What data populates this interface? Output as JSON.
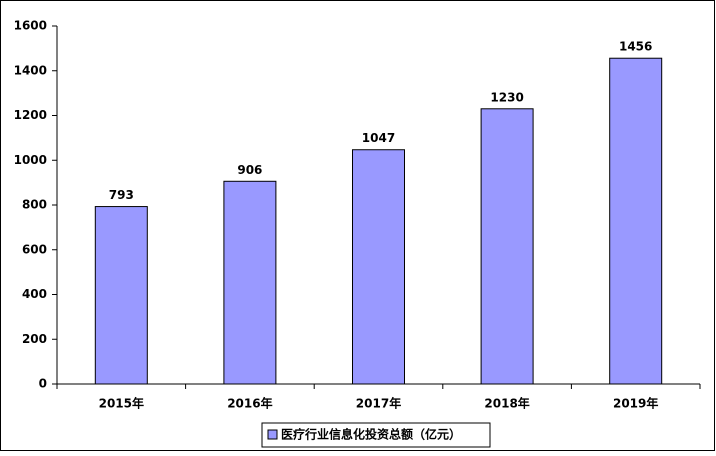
{
  "chart_data": {
    "type": "bar",
    "categories": [
      "2015年",
      "2016年",
      "2017年",
      "2018年",
      "2019年"
    ],
    "series": [
      {
        "name": "医疗行业信息化投资总额（亿元）",
        "color": "#9999ff",
        "values": [
          793,
          906,
          1047,
          1230,
          1456
        ]
      }
    ],
    "ylim": [
      0,
      1600
    ],
    "yticks": [
      0,
      200,
      400,
      600,
      800,
      1000,
      1200,
      1400,
      1600
    ],
    "grid": false,
    "legend": "bottom"
  }
}
